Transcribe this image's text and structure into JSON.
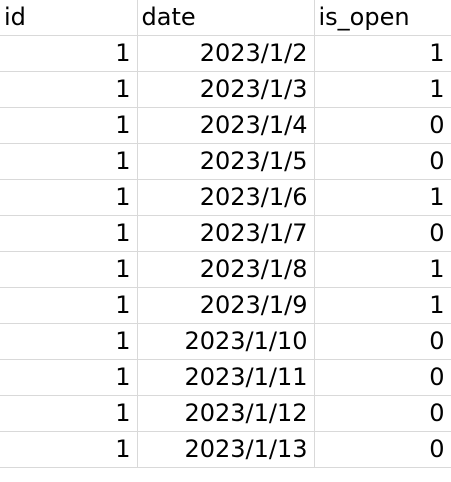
{
  "sheet": {
    "columns": [
      "id",
      "date",
      "is_open"
    ],
    "rows": [
      [
        "1",
        "2023/1/2",
        "1"
      ],
      [
        "1",
        "2023/1/3",
        "1"
      ],
      [
        "1",
        "2023/1/4",
        "0"
      ],
      [
        "1",
        "2023/1/5",
        "0"
      ],
      [
        "1",
        "2023/1/6",
        "1"
      ],
      [
        "1",
        "2023/1/7",
        "0"
      ],
      [
        "1",
        "2023/1/8",
        "1"
      ],
      [
        "1",
        "2023/1/9",
        "1"
      ],
      [
        "1",
        "2023/1/10",
        "0"
      ],
      [
        "1",
        "2023/1/11",
        "0"
      ],
      [
        "1",
        "2023/1/12",
        "0"
      ],
      [
        "1",
        "2023/1/13",
        "0"
      ]
    ]
  }
}
